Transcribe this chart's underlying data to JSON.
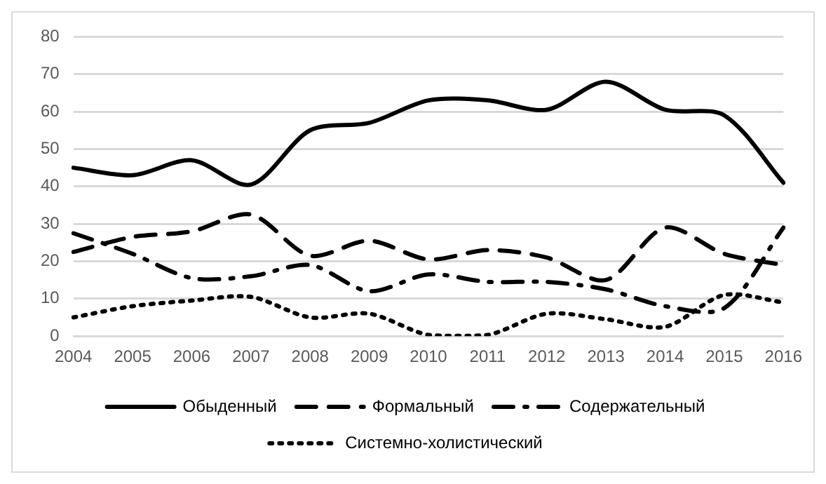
{
  "chart_data": {
    "type": "line",
    "categories": [
      "2004",
      "2005",
      "2006",
      "2007",
      "2008",
      "2009",
      "2010",
      "2011",
      "2012",
      "2013",
      "2014",
      "2015",
      "2016"
    ],
    "series": [
      {
        "name": "Обыденный",
        "color": "#000000",
        "line_style": "solid",
        "values": [
          45,
          43,
          47,
          40.5,
          55,
          57,
          63,
          63,
          60.5,
          68,
          60.5,
          59,
          41
        ]
      },
      {
        "name": "Формальный",
        "color": "#000000",
        "line_style": "dashed",
        "values": [
          22.5,
          26.5,
          28,
          32.5,
          21.5,
          25.5,
          20.5,
          23,
          21,
          15,
          29,
          22,
          19
        ]
      },
      {
        "name": "Содержательный",
        "color": "#000000",
        "line_style": "dashdot",
        "values": [
          27.5,
          22,
          15.5,
          16,
          19,
          12,
          16.5,
          14.5,
          14.5,
          12.5,
          8,
          7.5,
          29
        ]
      },
      {
        "name": "Системно-холистический",
        "color": "#000000",
        "line_style": "dotted",
        "values": [
          5,
          8,
          9.5,
          10.5,
          5,
          6,
          0.3,
          0.3,
          6,
          4.5,
          2.5,
          11,
          9
        ]
      }
    ],
    "ylim": [
      0,
      80
    ],
    "yticks": [
      0,
      10,
      20,
      30,
      40,
      50,
      60,
      70,
      80
    ],
    "grid": "y",
    "legend": "bottom",
    "marker": "none"
  }
}
